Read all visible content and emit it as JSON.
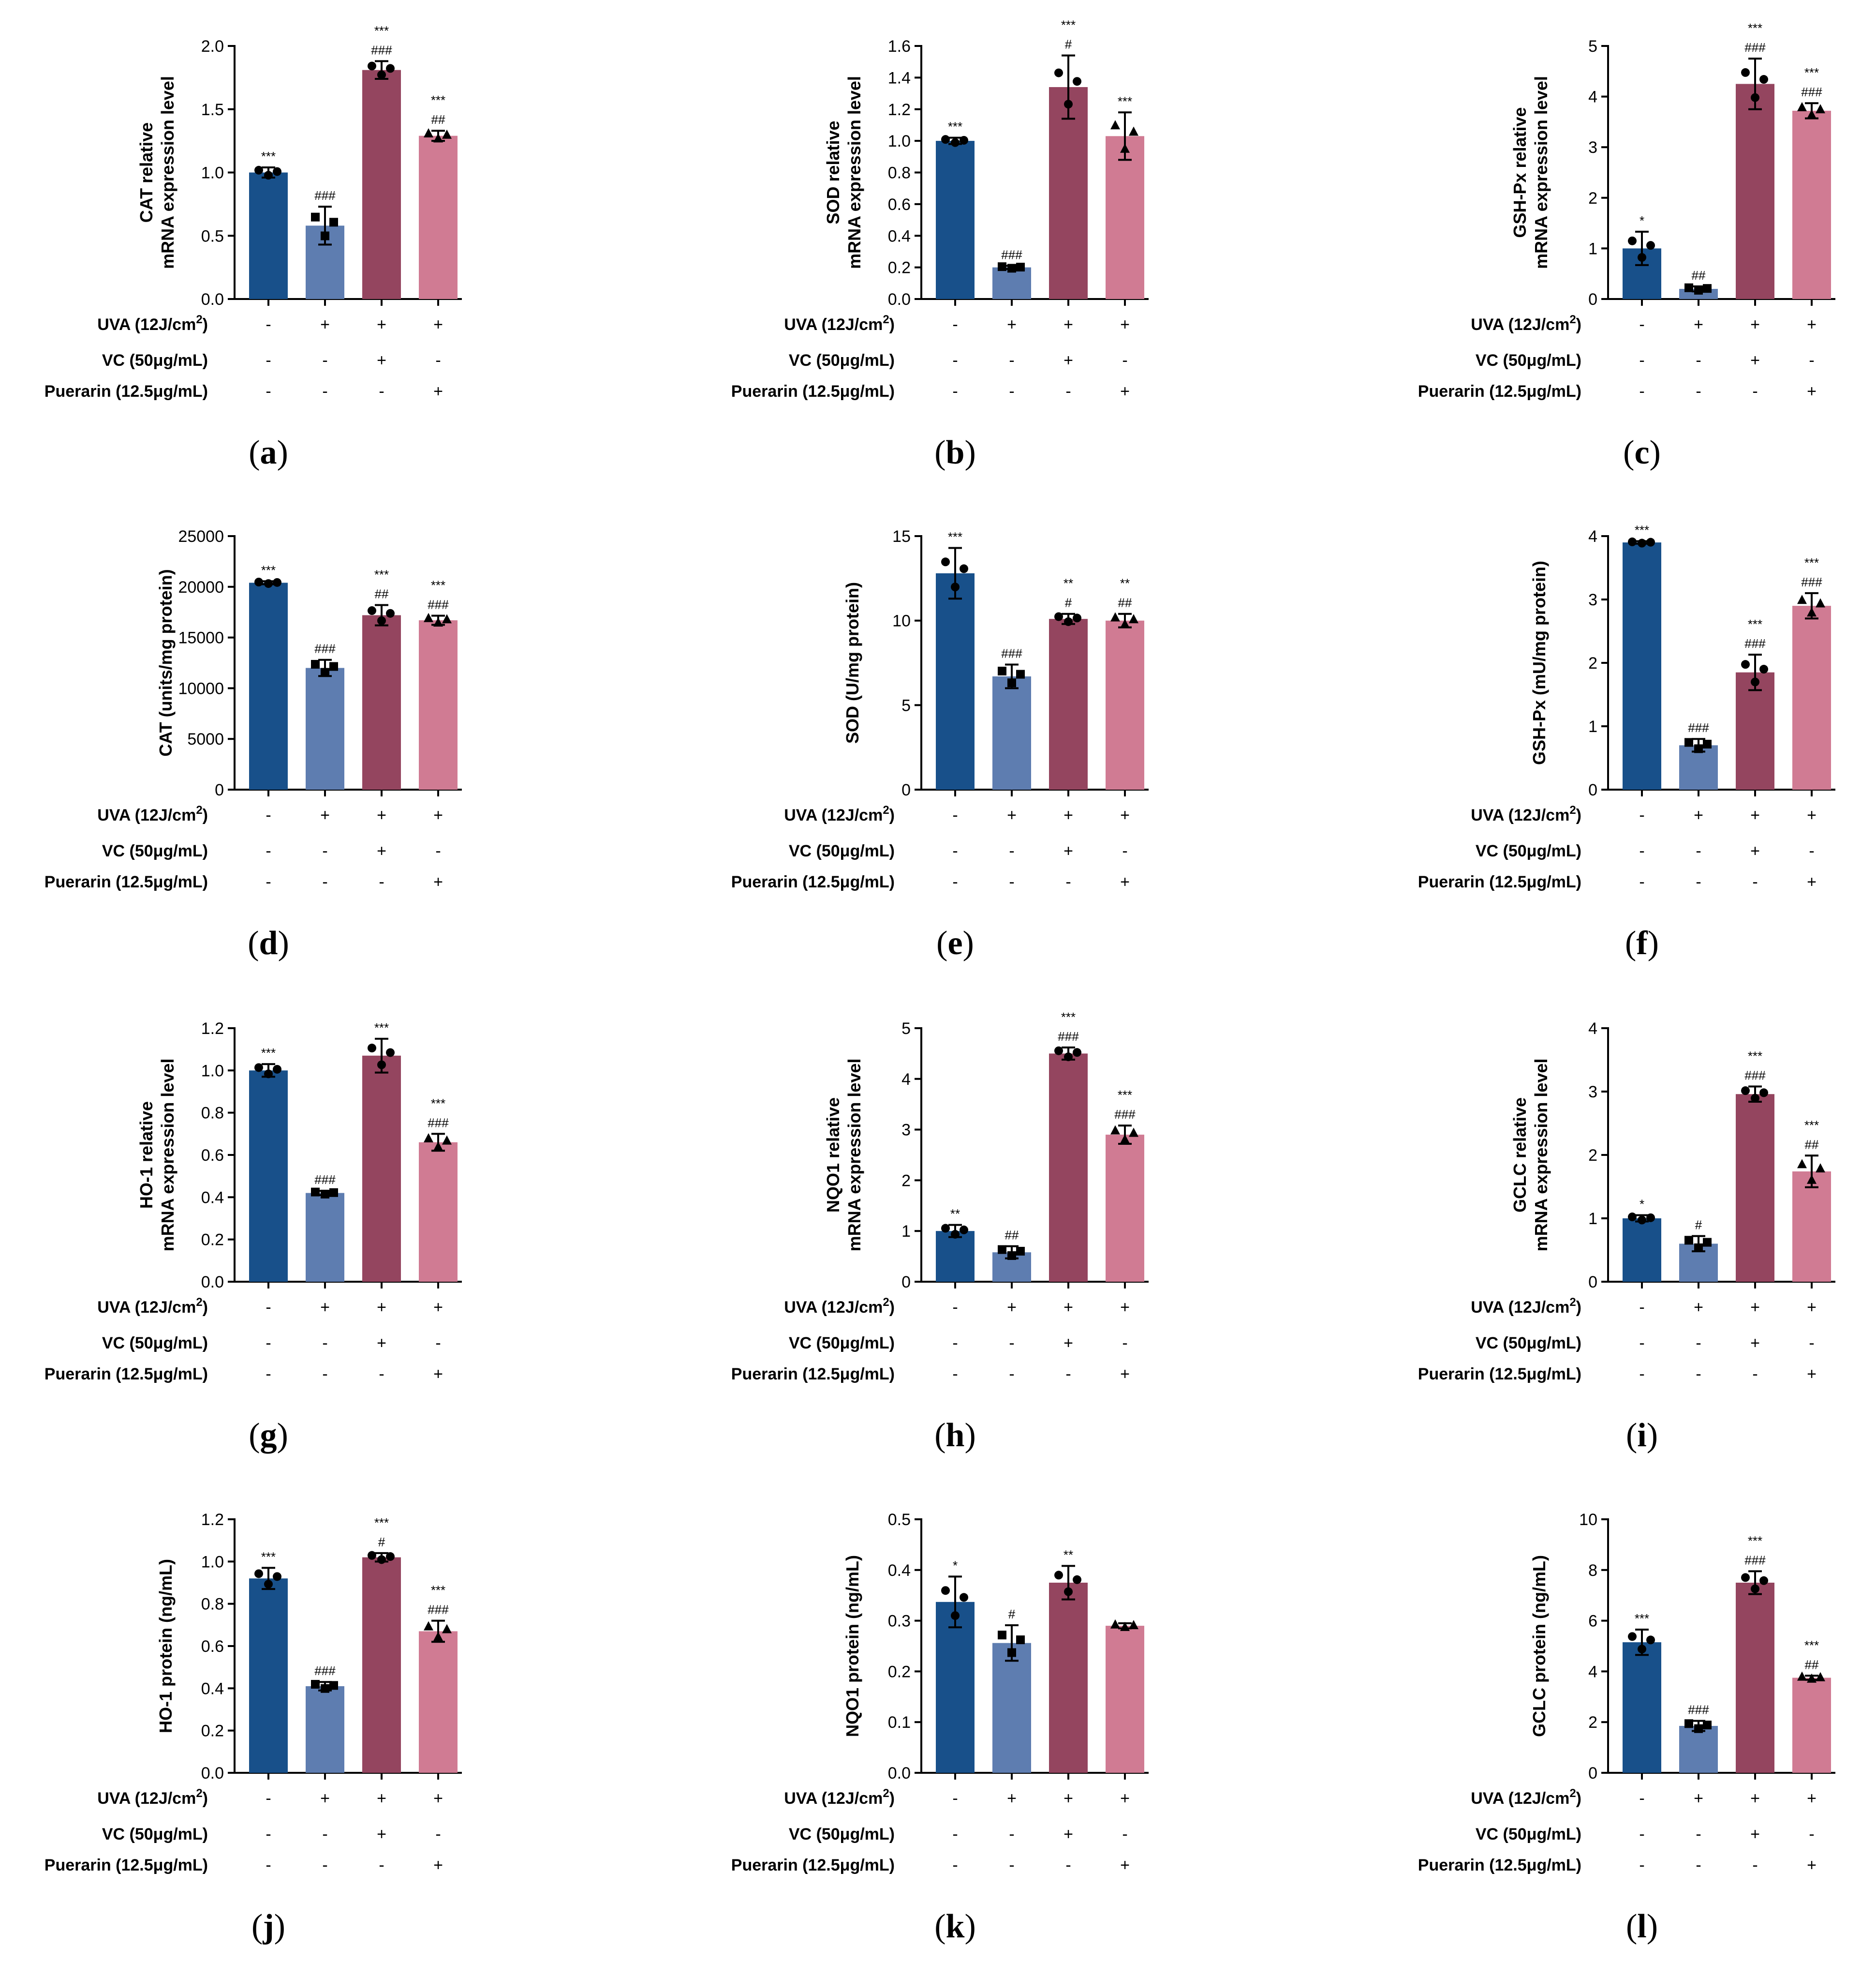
{
  "colors": [
    "#18508a",
    "#5e7db0",
    "#94455f",
    "#d07b93"
  ],
  "conditions": [
    {
      "label": "UVA (12J/cm",
      "sup": "2",
      "close": ")",
      "signs": [
        "-",
        "+",
        "+",
        "+"
      ]
    },
    {
      "label": "VC (50μg/mL)",
      "sup": "",
      "close": "",
      "signs": [
        "-",
        "-",
        "+",
        "-"
      ]
    },
    {
      "label": "Puerarin (12.5μg/mL)",
      "sup": "",
      "close": "",
      "signs": [
        "-",
        "-",
        "-",
        "+"
      ]
    }
  ],
  "chart_data": [
    {
      "type": "bar",
      "panel": "a",
      "ylabel": [
        "CAT relative",
        "mRNA expression level"
      ],
      "ylim": [
        0,
        2.0
      ],
      "ticks": [
        "0.0",
        "0.5",
        "1.0",
        "1.5",
        "2.0"
      ],
      "values": [
        1.0,
        0.58,
        1.81,
        1.29
      ],
      "errors": [
        0.04,
        0.15,
        0.07,
        0.04
      ],
      "sig": [
        [
          "***"
        ],
        [
          "###"
        ],
        [
          "***",
          "###"
        ],
        [
          "***",
          "##"
        ]
      ],
      "marker": "circle"
    },
    {
      "type": "bar",
      "panel": "b",
      "ylabel": [
        "SOD relative",
        "mRNA expression level"
      ],
      "ylim": [
        0,
        1.6
      ],
      "ticks": [
        "0.0",
        "0.2",
        "0.4",
        "0.6",
        "0.8",
        "1.0",
        "1.2",
        "1.4",
        "1.6"
      ],
      "values": [
        1.0,
        0.2,
        1.34,
        1.03
      ],
      "errors": [
        0.02,
        0.01,
        0.2,
        0.15
      ],
      "sig": [
        [
          "***"
        ],
        [
          "###"
        ],
        [
          "***",
          "#"
        ],
        [
          "***"
        ]
      ],
      "marker": "circle"
    },
    {
      "type": "bar",
      "panel": "c",
      "ylabel": [
        "GSH-Px relative",
        "mRNA expression level"
      ],
      "ylim": [
        0,
        5
      ],
      "ticks": [
        "0",
        "1",
        "2",
        "3",
        "4",
        "5"
      ],
      "values": [
        1.0,
        0.2,
        4.25,
        3.72
      ],
      "errors": [
        0.33,
        0.05,
        0.5,
        0.15
      ],
      "sig": [
        [
          "*"
        ],
        [
          "##"
        ],
        [
          "***",
          "###"
        ],
        [
          "***",
          "###"
        ]
      ],
      "marker": "circle"
    },
    {
      "type": "bar",
      "panel": "d",
      "ylabel": [
        "CAT (units/mg protein)"
      ],
      "ylim": [
        0,
        25000
      ],
      "ticks": [
        "0",
        "5000",
        "10000",
        "15000",
        "20000",
        "25000"
      ],
      "values": [
        20400,
        12000,
        17200,
        16700
      ],
      "errors": [
        150,
        800,
        1000,
        450
      ],
      "sig": [
        [
          "***"
        ],
        [
          "###"
        ],
        [
          "***",
          "##"
        ],
        [
          "***",
          "###"
        ]
      ],
      "marker": "circle"
    },
    {
      "type": "bar",
      "panel": "e",
      "ylabel": [
        "SOD (U/mg protein)"
      ],
      "ylim": [
        0,
        15
      ],
      "ticks": [
        "0",
        "5",
        "10",
        "15"
      ],
      "values": [
        12.8,
        6.7,
        10.1,
        10.0
      ],
      "errors": [
        1.5,
        0.7,
        0.3,
        0.4
      ],
      "sig": [
        [
          "***"
        ],
        [
          "###"
        ],
        [
          "**",
          "#"
        ],
        [
          "**",
          "##"
        ]
      ],
      "marker": "circle"
    },
    {
      "type": "bar",
      "panel": "f",
      "ylabel": [
        "GSH-Px (mU/mg protein)"
      ],
      "ylim": [
        0,
        4
      ],
      "ticks": [
        "0",
        "1",
        "2",
        "3",
        "4"
      ],
      "values": [
        3.9,
        0.7,
        1.85,
        2.9
      ],
      "errors": [
        0.02,
        0.1,
        0.28,
        0.2
      ],
      "sig": [
        [
          "***"
        ],
        [
          "###"
        ],
        [
          "***",
          "###"
        ],
        [
          "***",
          "###"
        ]
      ],
      "marker": "circle"
    },
    {
      "type": "bar",
      "panel": "g",
      "ylabel": [
        "HO-1 relative",
        "mRNA expression level"
      ],
      "ylim": [
        0,
        1.2
      ],
      "ticks": [
        "0.0",
        "0.2",
        "0.4",
        "0.6",
        "0.8",
        "1.0",
        "1.2"
      ],
      "values": [
        1.0,
        0.42,
        1.07,
        0.66
      ],
      "errors": [
        0.03,
        0.01,
        0.08,
        0.04
      ],
      "sig": [
        [
          "***"
        ],
        [
          "###"
        ],
        [
          "***"
        ],
        [
          "***",
          "###"
        ]
      ],
      "marker": "circle"
    },
    {
      "type": "bar",
      "panel": "h",
      "ylabel": [
        "NQO1 relative",
        "mRNA expression level"
      ],
      "ylim": [
        0,
        5
      ],
      "ticks": [
        "0",
        "1",
        "2",
        "3",
        "4",
        "5"
      ],
      "values": [
        1.0,
        0.58,
        4.5,
        2.9
      ],
      "errors": [
        0.12,
        0.12,
        0.12,
        0.18
      ],
      "sig": [
        [
          "**"
        ],
        [
          "##"
        ],
        [
          "***",
          "###"
        ],
        [
          "***",
          "###"
        ]
      ],
      "marker": "circle"
    },
    {
      "type": "bar",
      "panel": "i",
      "ylabel": [
        "GCLC relative",
        "mRNA expression level"
      ],
      "ylim": [
        0,
        4
      ],
      "ticks": [
        "0",
        "1",
        "2",
        "3",
        "4"
      ],
      "values": [
        1.0,
        0.6,
        2.96,
        1.74
      ],
      "errors": [
        0.05,
        0.12,
        0.12,
        0.25
      ],
      "sig": [
        [
          "*"
        ],
        [
          "#"
        ],
        [
          "***",
          "###"
        ],
        [
          "***",
          "##"
        ]
      ],
      "marker": "circle"
    },
    {
      "type": "bar",
      "panel": "j",
      "ylabel": [
        "HO-1 protein (ng/mL)"
      ],
      "ylim": [
        0,
        1.2
      ],
      "ticks": [
        "0.0",
        "0.2",
        "0.4",
        "0.6",
        "0.8",
        "1.0",
        "1.2"
      ],
      "values": [
        0.92,
        0.41,
        1.02,
        0.67
      ],
      "errors": [
        0.05,
        0.02,
        0.02,
        0.05
      ],
      "sig": [
        [
          "***"
        ],
        [
          "###"
        ],
        [
          "***",
          "#"
        ],
        [
          "***",
          "###"
        ]
      ],
      "marker": "circle"
    },
    {
      "type": "bar",
      "panel": "k",
      "ylabel": [
        "NQO1 protein (ng/mL)"
      ],
      "ylim": [
        0,
        0.5
      ],
      "ticks": [
        "0.0",
        "0.1",
        "0.2",
        "0.3",
        "0.4",
        "0.5"
      ],
      "values": [
        0.337,
        0.256,
        0.375,
        0.29
      ],
      "errors": [
        0.05,
        0.035,
        0.033,
        0.005
      ],
      "sig": [
        [
          "*"
        ],
        [
          "#"
        ],
        [
          "**"
        ],
        []
      ],
      "marker": "circle"
    },
    {
      "type": "bar",
      "panel": "l",
      "ylabel": [
        "GCLC protein (ng/mL)"
      ],
      "ylim": [
        0,
        10
      ],
      "ticks": [
        "0",
        "2",
        "4",
        "6",
        "8",
        "10"
      ],
      "values": [
        5.15,
        1.85,
        7.5,
        3.75
      ],
      "errors": [
        0.5,
        0.2,
        0.45,
        0.08
      ],
      "sig": [
        [
          "***"
        ],
        [
          "###"
        ],
        [
          "***",
          "###"
        ],
        [
          "***",
          "##"
        ]
      ],
      "marker": "circle"
    }
  ]
}
